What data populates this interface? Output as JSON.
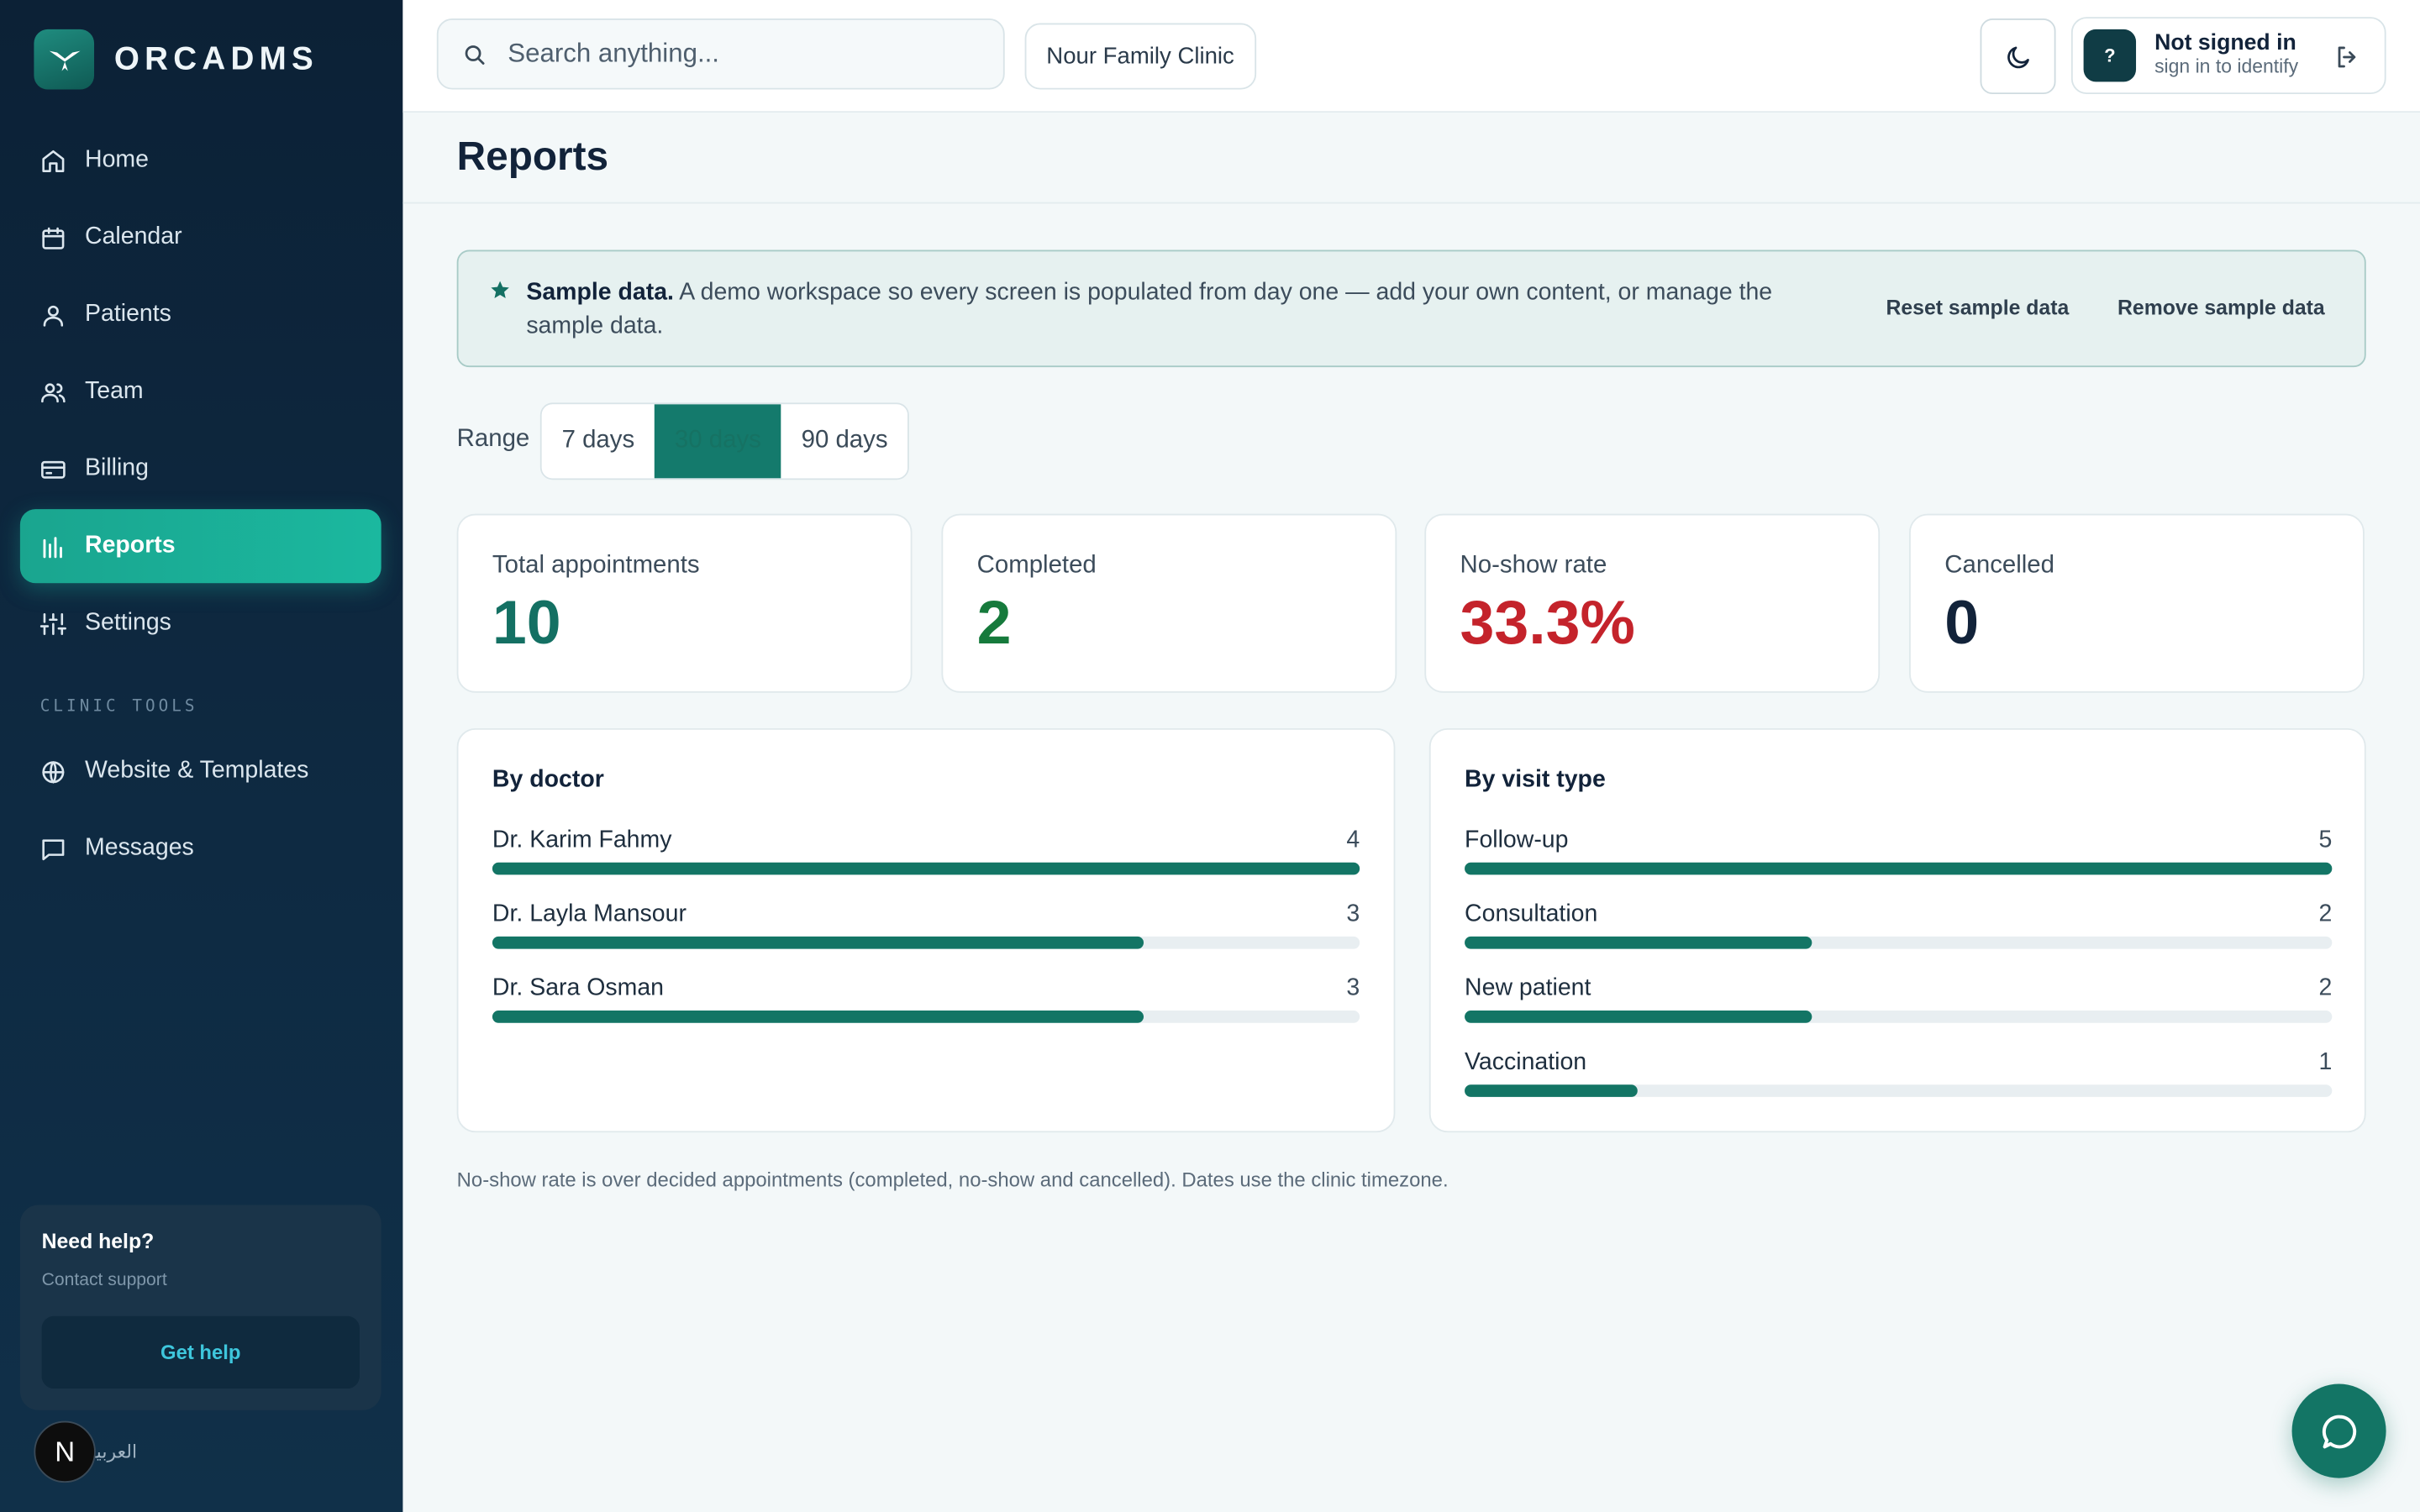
{
  "brand": {
    "name": "ORCADMS"
  },
  "sidebar": {
    "items": [
      {
        "label": "Home",
        "icon": "home-icon"
      },
      {
        "label": "Calendar",
        "icon": "calendar-icon"
      },
      {
        "label": "Patients",
        "icon": "user-icon"
      },
      {
        "label": "Team",
        "icon": "users-icon"
      },
      {
        "label": "Billing",
        "icon": "credit-card-icon"
      },
      {
        "label": "Reports",
        "icon": "bar-chart-icon",
        "active": true
      },
      {
        "label": "Settings",
        "icon": "sliders-icon"
      }
    ],
    "section_label": "CLINIC TOOLS",
    "tools": [
      {
        "label": "Website & Templates",
        "icon": "globe-icon"
      },
      {
        "label": "Messages",
        "icon": "message-square-icon"
      }
    ],
    "help": {
      "title": "Need help?",
      "subtitle": "Contact support",
      "button": "Get help"
    },
    "avatar_letter": "N",
    "language_toggle": "العربية"
  },
  "topbar": {
    "search_placeholder": "Search anything...",
    "clinic": "Nour Family Clinic",
    "user": {
      "avatar": "?",
      "name": "Not signed in",
      "sub": "sign in to identify"
    }
  },
  "page": {
    "title": "Reports"
  },
  "notice": {
    "strong": "Sample data.",
    "text": "A demo workspace so every screen is populated from day one — add your own content, or manage the sample data.",
    "reset": "Reset sample data",
    "remove": "Remove sample data"
  },
  "range": {
    "label": "Range",
    "options": [
      "7 days",
      "30 days",
      "90 days"
    ],
    "selected": "30 days"
  },
  "stats": [
    {
      "label": "Total appointments",
      "value": "10",
      "color": "#147063"
    },
    {
      "label": "Completed",
      "value": "2",
      "color": "#167a3c"
    },
    {
      "label": "No-show rate",
      "value": "33.3%",
      "color": "#c4232b"
    },
    {
      "label": "Cancelled",
      "value": "0",
      "color": "#12233a"
    }
  ],
  "by_doctor": {
    "title": "By doctor",
    "max": 4,
    "rows": [
      {
        "label": "Dr. Karim Fahmy",
        "value": 4
      },
      {
        "label": "Dr. Layla Mansour",
        "value": 3
      },
      {
        "label": "Dr. Sara Osman",
        "value": 3
      }
    ]
  },
  "by_visit_type": {
    "title": "By visit type",
    "max": 5,
    "rows": [
      {
        "label": "Follow-up",
        "value": 5
      },
      {
        "label": "Consultation",
        "value": 2
      },
      {
        "label": "New patient",
        "value": 2
      },
      {
        "label": "Vaccination",
        "value": 1
      }
    ]
  },
  "footnote": "No-show rate is over decided appointments (completed, no-show and cancelled). Dates use the clinic timezone.",
  "colors": {
    "accent": "#1bb89f",
    "bar": "#137565",
    "sidebar_bg": "#0c2136"
  }
}
